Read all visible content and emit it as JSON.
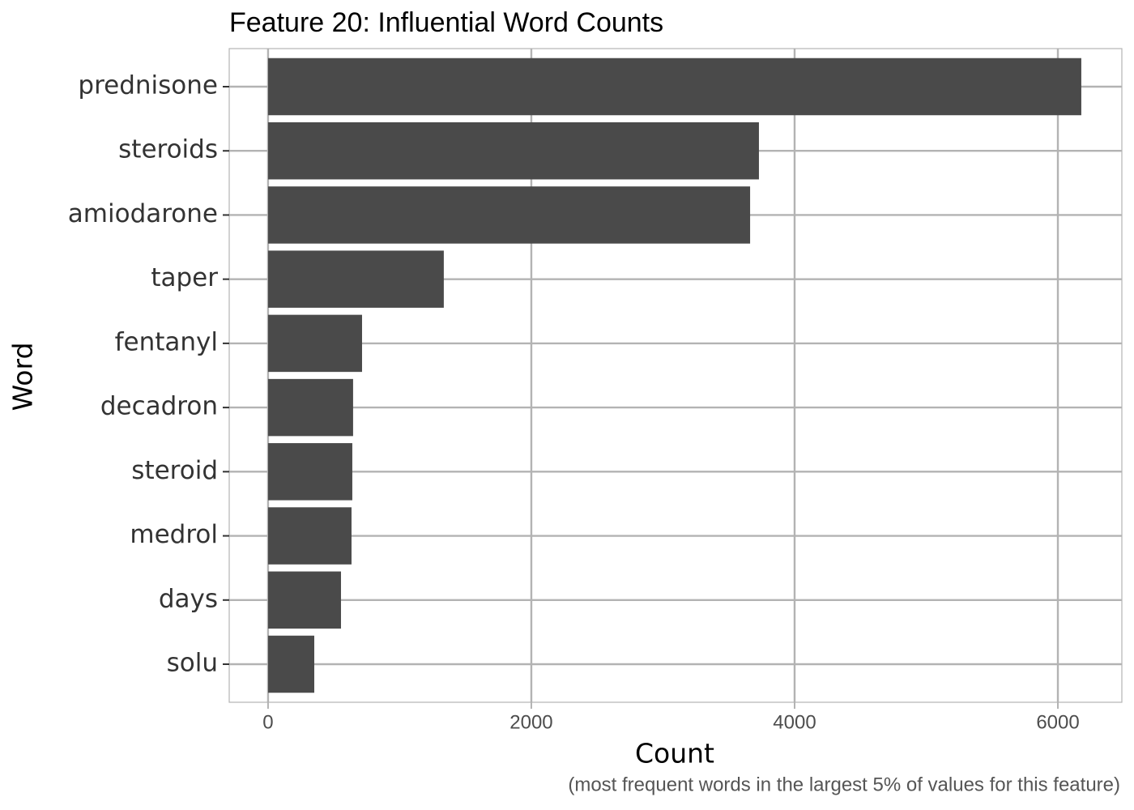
{
  "chart_data": {
    "type": "bar",
    "orientation": "horizontal",
    "title": "Feature 20: Influential Word Counts",
    "x_label": "Count",
    "y_label": "Word",
    "caption": "(most frequent words in the largest 5% of values for this feature)",
    "categories": [
      "prednisone",
      "steroids",
      "amiodarone",
      "taper",
      "fentanyl",
      "decadron",
      "steroid",
      "medrol",
      "days",
      "solu"
    ],
    "values": [
      6178,
      3729,
      3662,
      1335,
      714,
      646,
      640,
      634,
      554,
      351
    ],
    "color": "#4a4a4a",
    "xlim": [
      -295,
      6486
    ],
    "xticks": [
      0,
      2000,
      4000,
      6000
    ],
    "grid": true
  }
}
